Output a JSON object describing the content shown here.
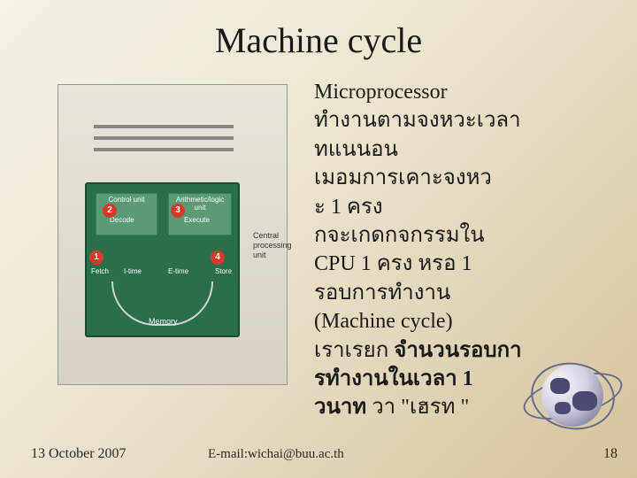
{
  "slide": {
    "title": "Machine cycle",
    "body_lines": [
      "Microprocessor",
      "ทำงานตามจงหวะเวลา",
      "ทแนนอน",
      "เมอมการเคาะจงหว",
      "ะ 1 ครง",
      "กจะเกดกจกรรมใน",
      "CPU 1 ครง    หรอ  1",
      "รอบการทำงาน",
      "(Machine cycle)"
    ],
    "body_line_bold_prefix": "เราเรยก ",
    "body_bold_1": "จำนวนรอบกา",
    "body_bold_2": "รทำงานในเวลา 1 ",
    "body_bold_3": "วนาท",
    "body_tail": "   วา  \"เฮรท \"",
    "footer_date": "13 October 2007",
    "footer_email": "E-mail:wichai@buu.ac.th",
    "footer_page": "18"
  },
  "diagram": {
    "control_unit": "Control unit",
    "alu": "Arithmetic/logic\nunit",
    "decode": "Decode",
    "execute": "Execute",
    "fetch": "Fetch",
    "itime": "I-time",
    "etime": "E-time",
    "store": "Store",
    "memory": "Memory",
    "cpu_label": "Central\nprocessing\nunit",
    "badges": {
      "b1": "1",
      "b2": "2",
      "b3": "3",
      "b4": "4"
    }
  },
  "colors": {
    "bg_start": "#f5f2e8",
    "bg_end": "#d4c49a",
    "cpu_green": "#2a6e4a",
    "sub_green": "#5a9a75",
    "badge_red": "#d83a2a",
    "globe_land": "#4a4a72"
  }
}
